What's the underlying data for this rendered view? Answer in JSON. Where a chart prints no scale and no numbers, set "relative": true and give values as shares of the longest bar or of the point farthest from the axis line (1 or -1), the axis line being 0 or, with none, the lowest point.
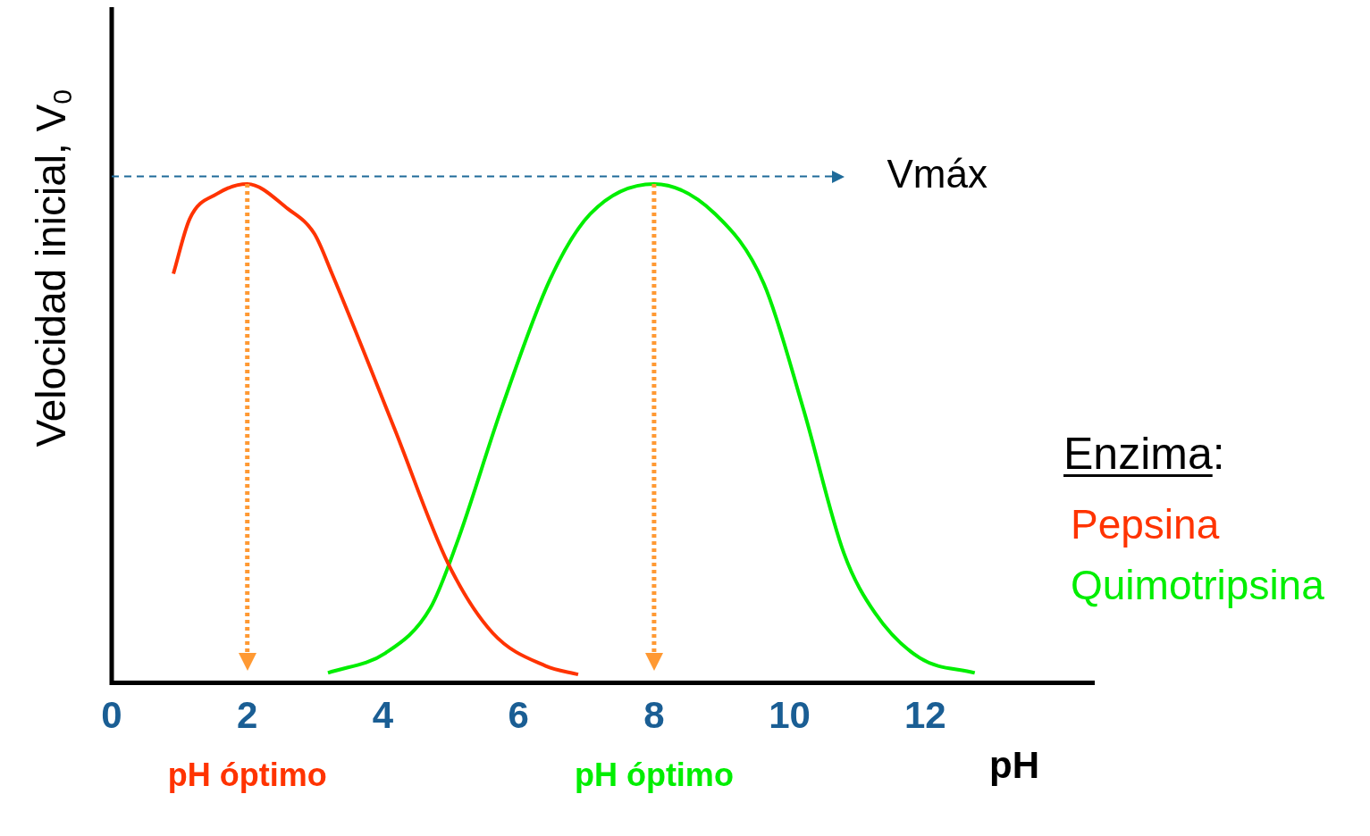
{
  "chart_data": {
    "type": "line",
    "xlabel": "pH",
    "ylabel": "Velocidad inicial, V$_{0}$",
    "legend_title": "Enzima:",
    "legend": "right",
    "relative": true,
    "grid": false,
    "marker": "none",
    "line_style": "solid",
    "xlim": [
      0,
      14.5
    ],
    "xticks": [
      0,
      2,
      4,
      6,
      8,
      10,
      12
    ],
    "series": [
      {
        "name": "Pepsina",
        "color": "#ff3300",
        "x": [
          0.91,
          1.15,
          1.55,
          2,
          2.6,
          2.99,
          3.25,
          4.17,
          4.96,
          5.62,
          6.4,
          6.88
        ],
        "values": [
          0.82,
          0.93,
          0.98,
          1,
          0.95,
          0.9,
          0.82,
          0.51,
          0.24,
          0.1,
          0.034,
          0.017
        ]
      },
      {
        "name": "Quimotripsina",
        "color": "#00ee00",
        "x": [
          3.19,
          4.04,
          4.7,
          5.09,
          5.75,
          6.47,
          7.06,
          8,
          8.9,
          9.62,
          10.2,
          10.8,
          11.26,
          11.92,
          12.73
        ],
        "values": [
          0.02,
          0.06,
          0.15,
          0.28,
          0.55,
          0.81,
          0.94,
          1,
          0.94,
          0.8,
          0.55,
          0.26,
          0.14,
          0.05,
          0.02
        ]
      }
    ],
    "ref_lines": [
      {
        "axis": "y",
        "value": 1.015,
        "label": "Vmáx",
        "color": "#1f6b9a",
        "line_style": "dashed"
      },
      {
        "axis": "x",
        "value": 2,
        "color": "#ff9933",
        "line_style": "dotted"
      },
      {
        "axis": "x",
        "value": 8,
        "color": "#ff9933",
        "line_style": "dotted"
      }
    ],
    "annotations": [
      "pH óptimo",
      "pH óptimo"
    ]
  }
}
